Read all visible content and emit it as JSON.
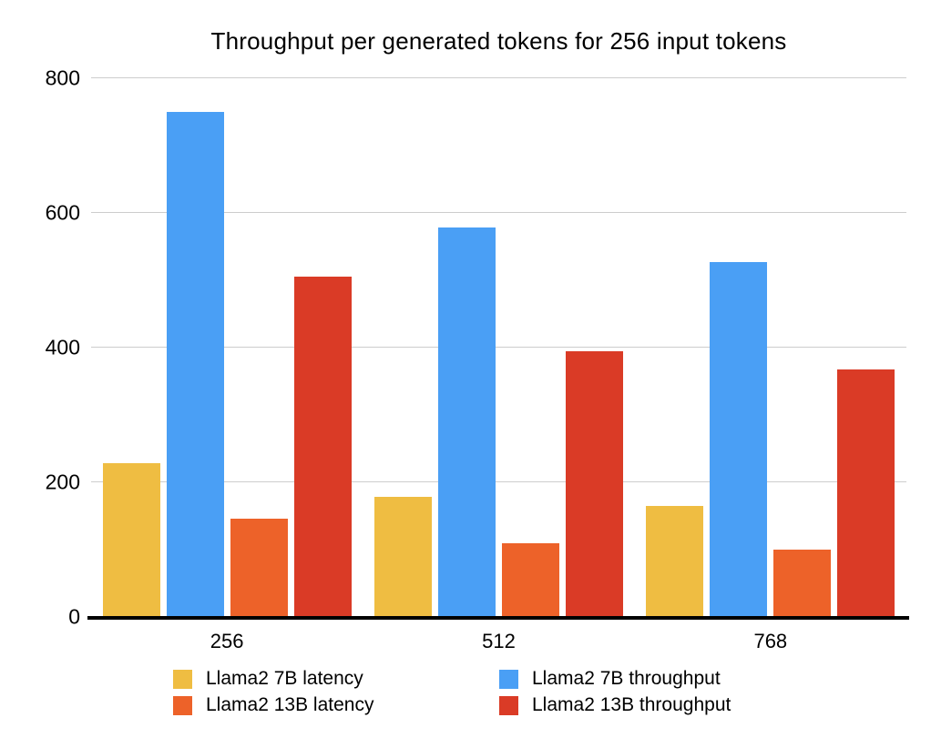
{
  "chart_data": {
    "type": "bar",
    "title": "Throughput per generated tokens for 256 input tokens",
    "categories": [
      "256",
      "512",
      "768"
    ],
    "series": [
      {
        "name": "Llama2 7B latency",
        "color": "#EFBD42",
        "values": [
          228,
          178,
          165
        ]
      },
      {
        "name": "Llama2 7B throughput",
        "color": "#4A9FF5",
        "values": [
          750,
          578,
          527
        ]
      },
      {
        "name": "Llama2 13B latency",
        "color": "#ED6229",
        "values": [
          146,
          110,
          100
        ]
      },
      {
        "name": "Llama2 13B throughput",
        "color": "#DA3B26",
        "values": [
          505,
          395,
          368
        ]
      }
    ],
    "xlabel": "",
    "ylabel": "",
    "ylim": [
      0,
      800
    ],
    "yticks": [
      0,
      200,
      400,
      600,
      800
    ],
    "grid": true,
    "legend_position": "bottom",
    "colors": {
      "background": "#ffffff",
      "gridline": "#cdcdcd",
      "axis_line": "#000000",
      "text": "#000000"
    }
  }
}
